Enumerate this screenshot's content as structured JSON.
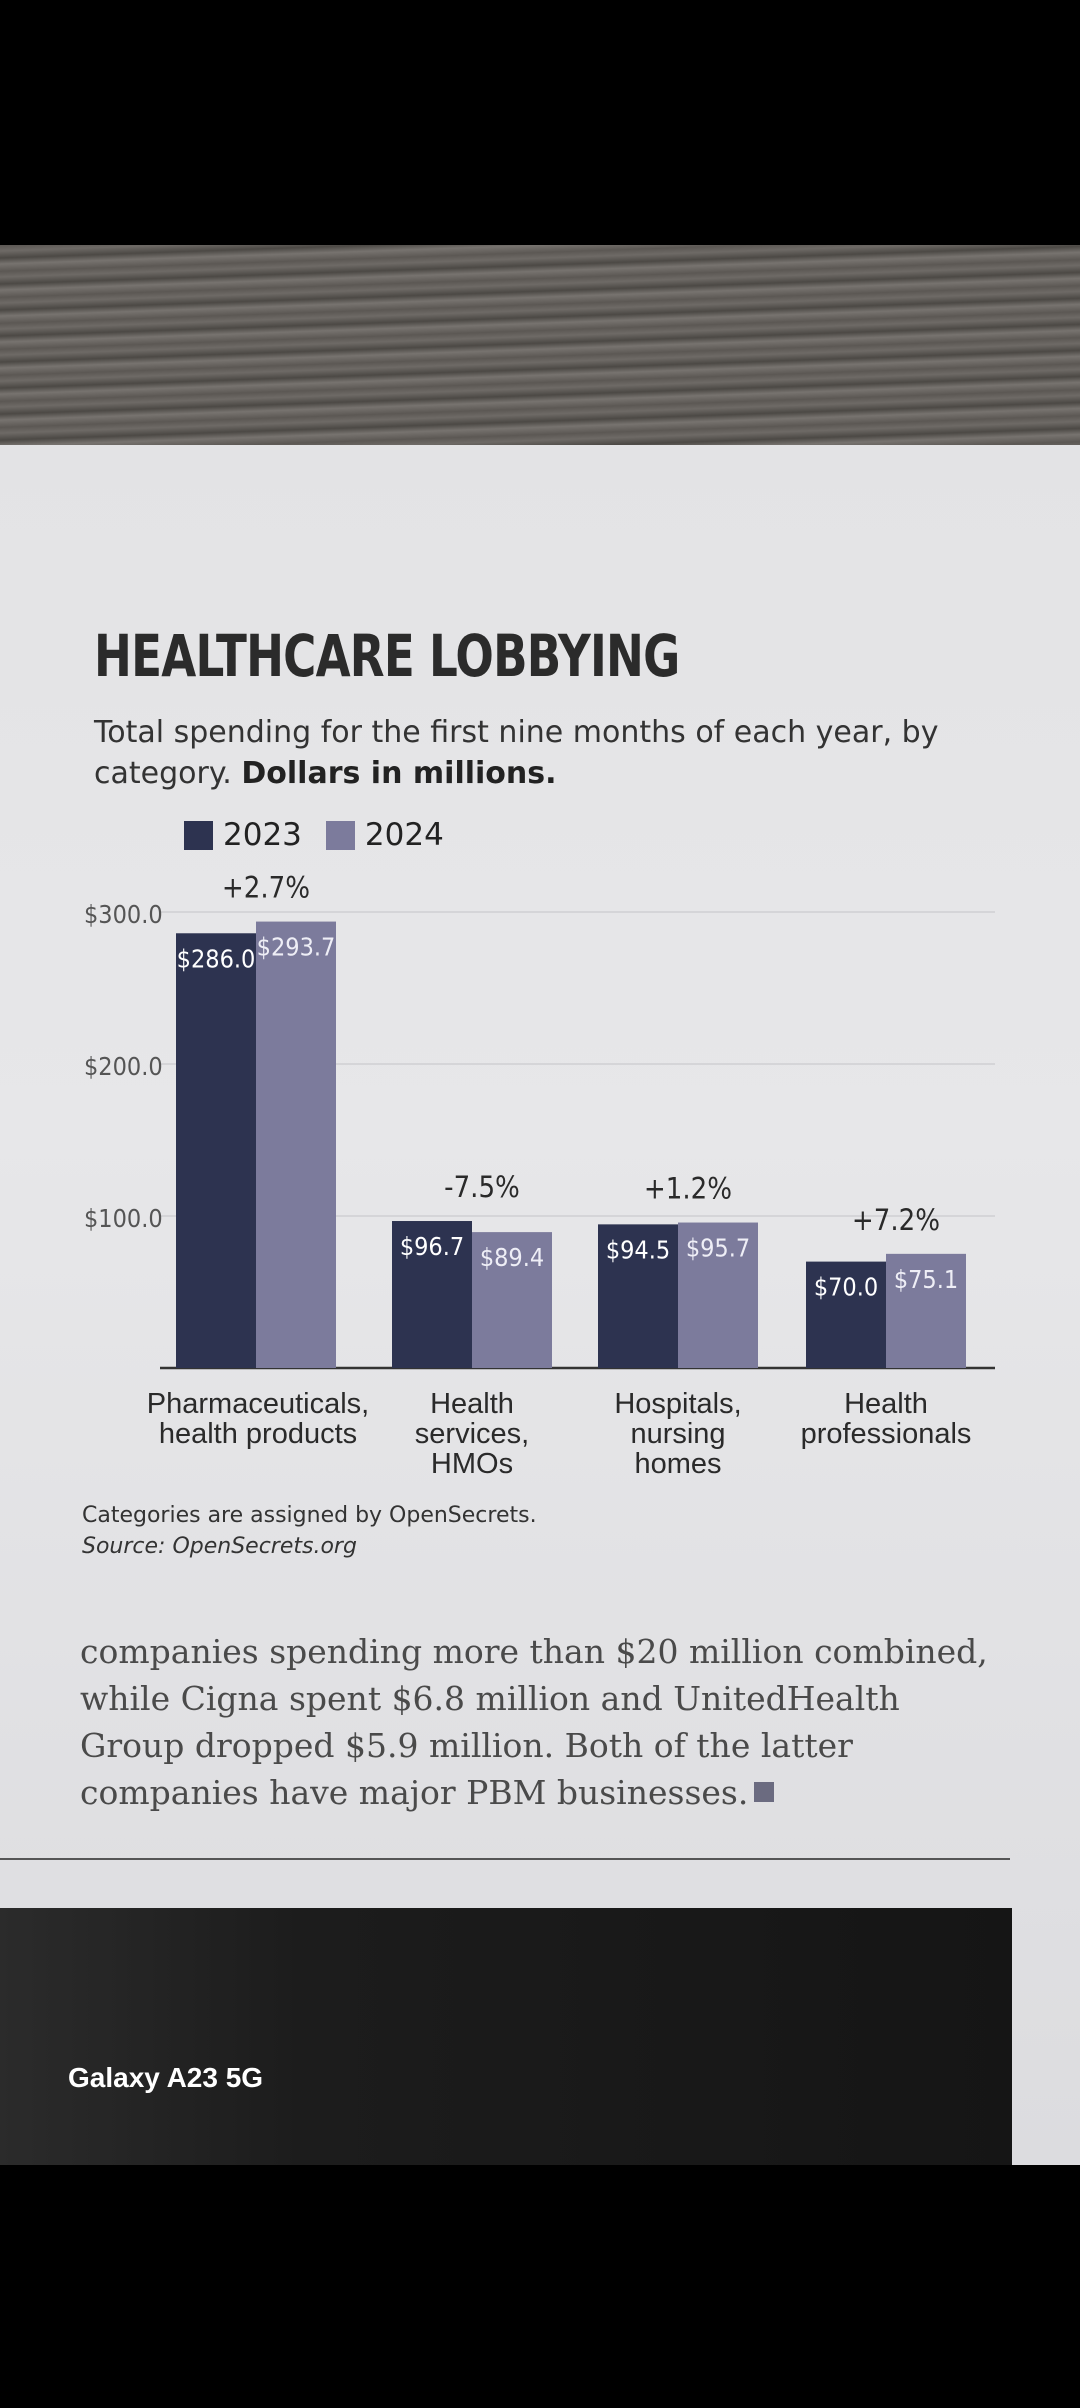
{
  "title": "HEALTHCARE LOBBYING",
  "subtitle": "Total spending for the first nine months of each year, by category.",
  "subtitle_bold": "Dollars in millions.",
  "legend": [
    {
      "label": "2023",
      "color": "#2d3350"
    },
    {
      "label": "2024",
      "color": "#7c7b9c"
    }
  ],
  "chart_data": {
    "type": "bar",
    "categories": [
      [
        "Pharmaceuticals,",
        "health products"
      ],
      [
        "Health",
        "services,",
        "HMOs"
      ],
      [
        "Hospitals,",
        "nursing",
        "homes"
      ],
      [
        "Health",
        "professionals"
      ]
    ],
    "series": [
      {
        "name": "2023",
        "values": [
          286.0,
          96.7,
          94.5,
          70.0
        ],
        "labels": [
          "$286.0",
          "$96.7",
          "$94.5",
          "$70.0"
        ],
        "color": "#2d3350"
      },
      {
        "name": "2024",
        "values": [
          293.7,
          89.4,
          95.7,
          75.1
        ],
        "labels": [
          "$293.7",
          "$89.4",
          "$95.7",
          "$75.1"
        ],
        "color": "#7c7b9c"
      }
    ],
    "changes": [
      "+2.7%",
      "-7.5%",
      "+1.2%",
      "+7.2%"
    ],
    "y_ticks": [
      {
        "value": 300,
        "label": "$300.0"
      },
      {
        "value": 200,
        "label": "$200.0"
      },
      {
        "value": 100,
        "label": "$100.0"
      }
    ],
    "ylim": [
      0,
      300
    ],
    "grid": true
  },
  "footnote": {
    "note": "Categories are assigned by OpenSecrets.",
    "source": "Source: OpenSecrets.org"
  },
  "body_text": "companies spending more than $20 million combined, while Cigna spent $6.8 million and UnitedHealth Group dropped $5.9 million. Both of the latter companies have major PBM businesses.",
  "watermark": "Galaxy A23 5G"
}
